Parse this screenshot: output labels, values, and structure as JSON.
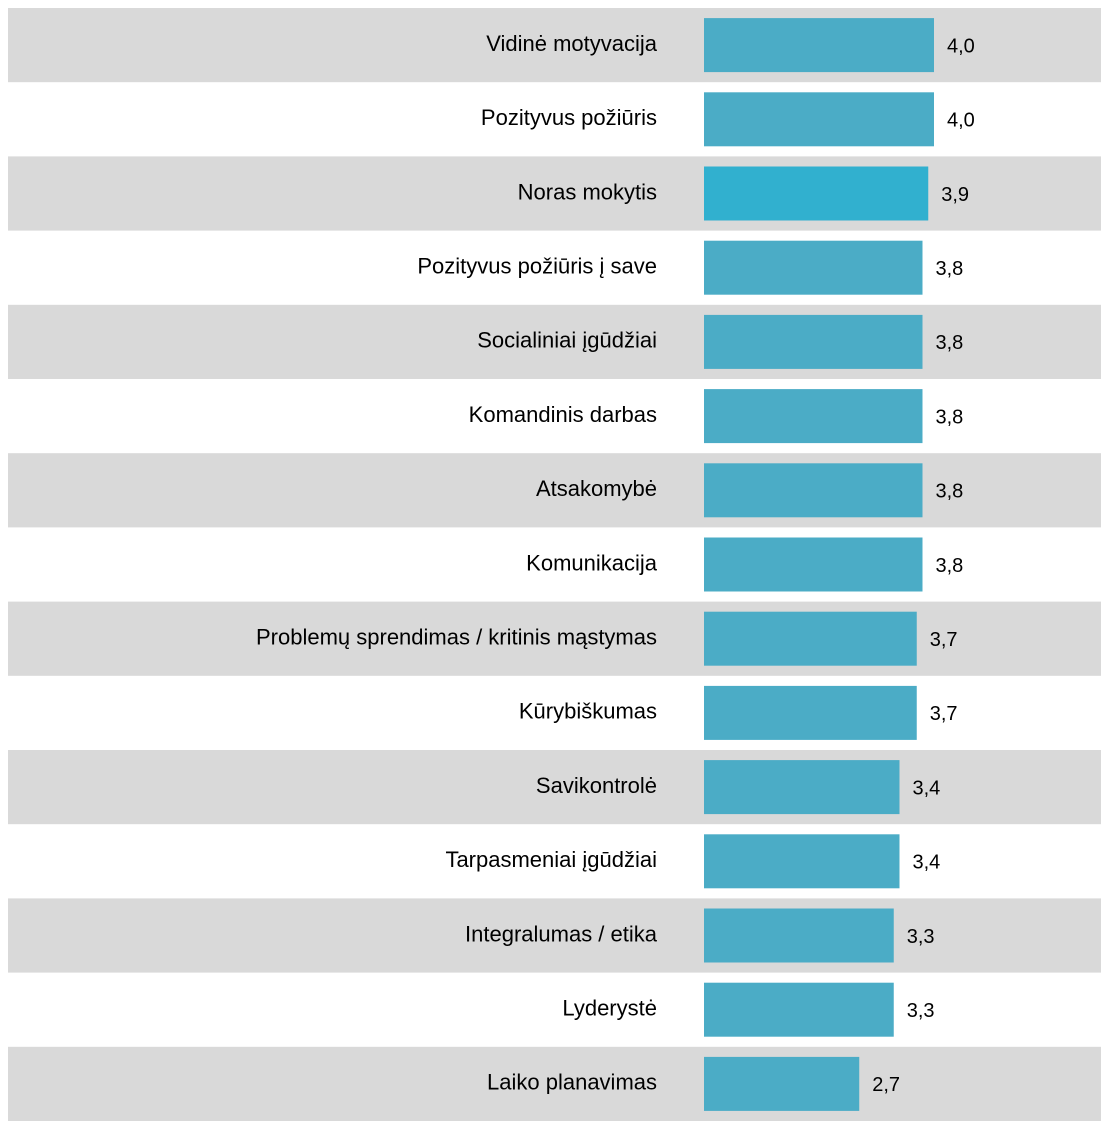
{
  "chart_data": {
    "type": "bar",
    "orientation": "horizontal",
    "categories": [
      "Vidinė motyvacija",
      "Pozityvus požiūris",
      "Noras mokytis",
      "Pozityvus požiūris į save",
      "Socialiniai įgūdžiai",
      "Komandinis darbas",
      "Atsakomybė",
      "Komunikacija",
      "Problemų sprendimas / kritinis mąstymas",
      "Kūrybiškumas",
      "Savikontrolė",
      "Tarpasmeniai įgūdžiai",
      "Integralumas / etika",
      "Lyderystė",
      "Laiko planavimas"
    ],
    "values": [
      4.0,
      4.0,
      3.9,
      3.8,
      3.8,
      3.8,
      3.8,
      3.8,
      3.7,
      3.7,
      3.4,
      3.4,
      3.3,
      3.3,
      2.7
    ],
    "value_labels": [
      "4,0",
      "4,0",
      "3,9",
      "3,8",
      "3,8",
      "3,8",
      "3,8",
      "3,8",
      "3,7",
      "3,7",
      "3,4",
      "3,4",
      "3,3",
      "3,3",
      "2,7"
    ],
    "colors": [
      "#4bacc6",
      "#4bacc6",
      "#31b0cf",
      "#4bacc6",
      "#4bacc6",
      "#4bacc6",
      "#4bacc6",
      "#4bacc6",
      "#4bacc6",
      "#4bacc6",
      "#4bacc6",
      "#4bacc6",
      "#4bacc6",
      "#4bacc6",
      "#4bacc6"
    ]
  }
}
